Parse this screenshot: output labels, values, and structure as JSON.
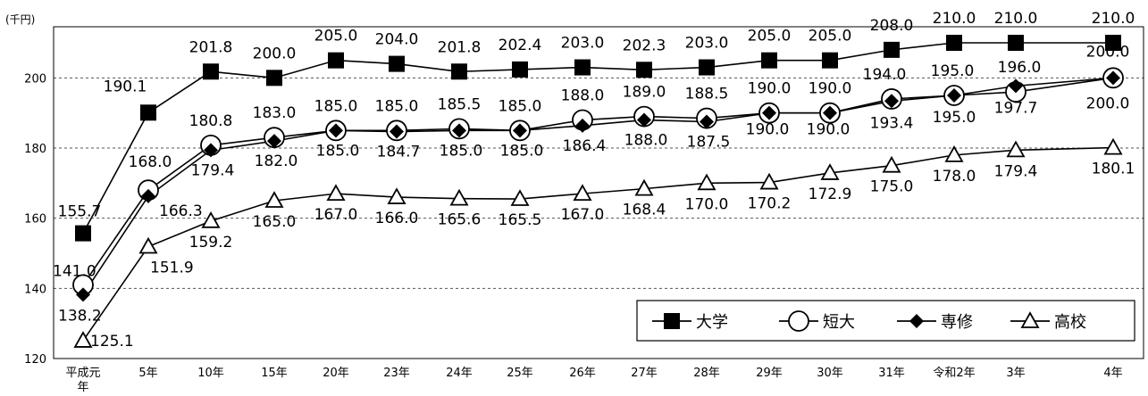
{
  "chart_data": {
    "type": "line",
    "unit_label": "(千円)",
    "categories": [
      "平成元年",
      "5年",
      "10年",
      "15年",
      "20年",
      "23年",
      "24年",
      "25年",
      "26年",
      "27年",
      "28年",
      "29年",
      "30年",
      "31年",
      "令和2年",
      "3年",
      "4年"
    ],
    "ylim": [
      120,
      210
    ],
    "yticks": [
      120,
      140,
      160,
      180,
      200
    ],
    "grid": "horizontal dashed at 140,160,180,200",
    "legend_position": "bottom-right",
    "series": [
      {
        "name": "大学",
        "marker": "square-filled",
        "values": [
          155.7,
          190.1,
          201.8,
          200.0,
          205.0,
          204.0,
          201.8,
          202.4,
          203.0,
          202.3,
          203.0,
          205.0,
          205.0,
          208.0,
          210.0,
          210.0,
          210.0
        ]
      },
      {
        "name": "短大",
        "marker": "circle-open",
        "values": [
          141.0,
          168.0,
          180.8,
          183.0,
          185.0,
          185.0,
          185.5,
          185.0,
          188.0,
          189.0,
          188.5,
          190.0,
          190.0,
          194.0,
          195.0,
          196.0,
          200.0
        ]
      },
      {
        "name": "専修",
        "marker": "diamond-filled",
        "values": [
          138.2,
          166.3,
          179.4,
          182.0,
          185.0,
          184.7,
          185.0,
          185.0,
          186.4,
          188.0,
          187.5,
          190.0,
          190.0,
          193.4,
          195.0,
          197.7,
          200.0
        ]
      },
      {
        "name": "高校",
        "marker": "triangle-open",
        "values": [
          125.1,
          151.9,
          159.2,
          165.0,
          167.0,
          166.0,
          165.6,
          165.5,
          167.0,
          168.4,
          170.0,
          170.2,
          172.9,
          175.0,
          178.0,
          179.4,
          180.1
        ]
      }
    ]
  }
}
